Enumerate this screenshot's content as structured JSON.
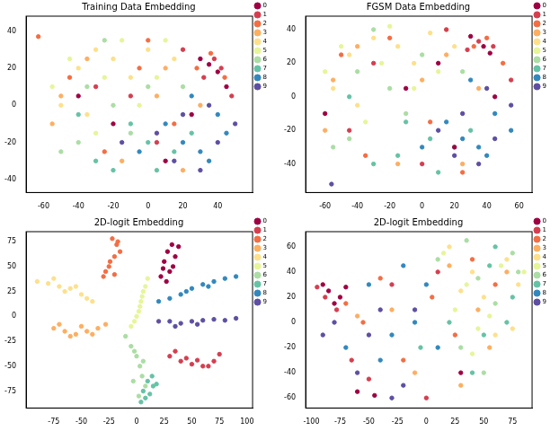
{
  "chart_data": [
    {
      "type": "scatter",
      "title": "Training Data Embedding",
      "xlim": [
        -70,
        60
      ],
      "ylim": [
        -47,
        48
      ],
      "xticks": [
        -60,
        -40,
        -20,
        0,
        20,
        40
      ],
      "yticks": [
        -40,
        -20,
        0,
        20,
        40
      ],
      "grid": false,
      "legend": "upper right",
      "marker": "circle",
      "series": [
        {
          "name": "0",
          "color": "#9e0142",
          "x": [
            35,
            40,
            30,
            45,
            -20,
            10,
            -40,
            25
          ],
          "y": [
            22,
            18,
            25,
            10,
            -10,
            -30,
            5,
            -5
          ]
        },
        {
          "name": "1",
          "color": "#d53e4f",
          "x": [
            38,
            42,
            32,
            -30,
            5,
            20,
            -10,
            48
          ],
          "y": [
            25,
            20,
            15,
            10,
            -20,
            30,
            5,
            5
          ]
        },
        {
          "name": "2",
          "color": "#f46d43",
          "x": [
            36,
            28,
            -45,
            -5,
            15,
            -25,
            44,
            0,
            -63
          ],
          "y": [
            28,
            20,
            15,
            20,
            -10,
            -25,
            15,
            35,
            37
          ]
        },
        {
          "name": "3",
          "color": "#fdae61",
          "x": [
            -50,
            -35,
            10,
            -15,
            30,
            20,
            -55,
            5
          ],
          "y": [
            5,
            25,
            20,
            -30,
            0,
            -35,
            -10,
            5
          ]
        },
        {
          "name": "4",
          "color": "#fee08b",
          "x": [
            -40,
            -30,
            -20,
            -50,
            -10,
            0,
            -35,
            15
          ],
          "y": [
            20,
            30,
            25,
            0,
            15,
            30,
            -5,
            25
          ]
        },
        {
          "name": "5",
          "color": "#e6f598",
          "x": [
            -45,
            -25,
            -55,
            -15,
            5,
            -30,
            10,
            -5
          ],
          "y": [
            25,
            15,
            10,
            35,
            15,
            -15,
            35,
            0
          ]
        },
        {
          "name": "6",
          "color": "#abdda4",
          "x": [
            -35,
            -20,
            -40,
            -10,
            0,
            -25,
            -50,
            20
          ],
          "y": [
            10,
            0,
            -20,
            -15,
            10,
            35,
            -25,
            10
          ]
        },
        {
          "name": "7",
          "color": "#66c2a5",
          "x": [
            0,
            -20,
            15,
            -10,
            25,
            -30,
            5,
            -40
          ],
          "y": [
            -20,
            -35,
            -25,
            -10,
            -15,
            -30,
            -35,
            -5
          ]
        },
        {
          "name": "8",
          "color": "#3288bd",
          "x": [
            20,
            35,
            40,
            10,
            30,
            -5,
            45,
            25
          ],
          "y": [
            -20,
            -30,
            -5,
            -10,
            -25,
            -25,
            -15,
            5
          ]
        },
        {
          "name": "9",
          "color": "#5e4fa2",
          "x": [
            30,
            15,
            40,
            50,
            20,
            5,
            35,
            -15
          ],
          "y": [
            -35,
            -30,
            -20,
            -10,
            -5,
            -15,
            0,
            -20
          ]
        }
      ]
    },
    {
      "type": "scatter",
      "title": "FGSM Data Embedding",
      "xlim": [
        -72,
        68
      ],
      "ylim": [
        -57,
        48
      ],
      "xticks": [
        -60,
        -40,
        -20,
        0,
        20,
        40,
        60
      ],
      "yticks": [
        -40,
        -20,
        0,
        20,
        40
      ],
      "grid": false,
      "legend": "upper right",
      "marker": "circle",
      "series": [
        {
          "name": "0",
          "color": "#9e0142",
          "x": [
            38,
            42,
            30,
            -60,
            20,
            -10,
            45,
            10
          ],
          "y": [
            30,
            26,
            36,
            -10,
            -30,
            5,
            0,
            20
          ]
        },
        {
          "name": "1",
          "color": "#d53e4f",
          "x": [
            35,
            44,
            28,
            -30,
            0,
            55,
            -45,
            15
          ],
          "y": [
            33,
            30,
            28,
            20,
            -40,
            10,
            -20,
            40
          ]
        },
        {
          "name": "2",
          "color": "#f46d43",
          "x": [
            40,
            32,
            -50,
            -20,
            5,
            -35,
            50,
            25
          ],
          "y": [
            35,
            30,
            25,
            35,
            -15,
            -35,
            20,
            -45
          ]
        },
        {
          "name": "3",
          "color": "#fdae61",
          "x": [
            -55,
            -40,
            15,
            -15,
            35,
            25,
            -60,
            0
          ],
          "y": [
            10,
            30,
            25,
            -40,
            5,
            -40,
            -20,
            10
          ]
        },
        {
          "name": "4",
          "color": "#fee08b",
          "x": [
            -45,
            -30,
            -15,
            -55,
            -5,
            5,
            -40,
            20
          ],
          "y": [
            25,
            35,
            30,
            5,
            20,
            38,
            -5,
            30
          ]
        },
        {
          "name": "5",
          "color": "#e6f598",
          "x": [
            -50,
            -25,
            -60,
            -20,
            10,
            -35,
            15,
            -5
          ],
          "y": [
            30,
            20,
            15,
            42,
            15,
            -15,
            40,
            5
          ]
        },
        {
          "name": "6",
          "color": "#abdda4",
          "x": [
            -40,
            -20,
            -45,
            -10,
            0,
            -30,
            -55,
            25
          ],
          "y": [
            15,
            5,
            -25,
            -10,
            25,
            40,
            -30,
            15
          ]
        },
        {
          "name": "7",
          "color": "#66c2a5",
          "x": [
            5,
            -15,
            20,
            -10,
            30,
            -30,
            10,
            -45
          ],
          "y": [
            -25,
            -35,
            -30,
            -15,
            -20,
            -40,
            -45,
            0
          ]
        },
        {
          "name": "8",
          "color": "#3288bd",
          "x": [
            25,
            40,
            45,
            15,
            35,
            0,
            55,
            30
          ],
          "y": [
            -25,
            -35,
            -10,
            -15,
            -30,
            -30,
            -20,
            10
          ]
        },
        {
          "name": "9",
          "color": "#5e4fa2",
          "x": [
            35,
            20,
            45,
            55,
            25,
            10,
            40,
            -56
          ],
          "y": [
            -40,
            -35,
            -25,
            -5,
            -10,
            -20,
            5,
            -52
          ]
        }
      ]
    },
    {
      "type": "scatter",
      "title": "2D-logit Embedding",
      "xlim": [
        -100,
        105
      ],
      "ylim": [
        -92,
        85
      ],
      "xticks": [
        -75,
        -50,
        -25,
        0,
        25,
        50,
        75,
        100
      ],
      "yticks": [
        -75,
        -50,
        -25,
        0,
        25,
        50,
        75
      ],
      "grid": false,
      "legend": "upper right",
      "marker": "circle",
      "series": [
        {
          "name": "0",
          "color": "#9e0142",
          "x": [
            22,
            25,
            28,
            32,
            30,
            35,
            27,
            38,
            33,
            24
          ],
          "y": [
            40,
            55,
            65,
            72,
            45,
            60,
            35,
            70,
            50,
            48
          ]
        },
        {
          "name": "1",
          "color": "#d53e4f",
          "x": [
            30,
            40,
            50,
            60,
            70,
            75,
            45,
            55,
            65,
            35
          ],
          "y": [
            -40,
            -45,
            -48,
            -50,
            -45,
            -38,
            -42,
            -44,
            -50,
            -35
          ]
        },
        {
          "name": "2",
          "color": "#f46d43",
          "x": [
            -30,
            -25,
            -20,
            -18,
            -22,
            -28,
            -15,
            -24,
            -20,
            -17
          ],
          "y": [
            40,
            50,
            60,
            72,
            78,
            45,
            65,
            55,
            42,
            75
          ]
        },
        {
          "name": "3",
          "color": "#fdae61",
          "x": [
            -75,
            -65,
            -55,
            -45,
            -35,
            -60,
            -50,
            -70,
            -40,
            -28
          ],
          "y": [
            -12,
            -15,
            -18,
            -15,
            -12,
            -20,
            -10,
            -8,
            -18,
            -8
          ]
        },
        {
          "name": "4",
          "color": "#fee08b",
          "x": [
            -90,
            -80,
            -70,
            -60,
            -50,
            -40,
            -75,
            -65,
            -55,
            -45
          ],
          "y": [
            35,
            33,
            30,
            28,
            22,
            15,
            38,
            25,
            30,
            18
          ]
        },
        {
          "name": "5",
          "color": "#e6f598",
          "x": [
            -5,
            0,
            3,
            5,
            8,
            2,
            6,
            -2,
            4,
            10
          ],
          "y": [
            -10,
            0,
            10,
            20,
            30,
            5,
            25,
            -5,
            15,
            38
          ]
        },
        {
          "name": "6",
          "color": "#abdda4",
          "x": [
            -10,
            -5,
            0,
            3,
            5,
            8,
            2,
            -3,
            6,
            -2
          ],
          "y": [
            -20,
            -30,
            -40,
            -50,
            -60,
            -70,
            -80,
            -65,
            -45,
            -35
          ]
        },
        {
          "name": "7",
          "color": "#66c2a5",
          "x": [
            12,
            8,
            15,
            4,
            10,
            14,
            6,
            18
          ],
          "y": [
            -78,
            -82,
            -70,
            -86,
            -65,
            -60,
            -75,
            -68
          ]
        },
        {
          "name": "8",
          "color": "#3288bd",
          "x": [
            20,
            30,
            40,
            50,
            60,
            70,
            80,
            90,
            45,
            65
          ],
          "y": [
            15,
            18,
            22,
            28,
            32,
            35,
            38,
            40,
            25,
            30
          ]
        },
        {
          "name": "9",
          "color": "#5e4fa2",
          "x": [
            20,
            30,
            40,
            50,
            60,
            70,
            80,
            90,
            35,
            55
          ],
          "y": [
            -5,
            -5,
            -7,
            -5,
            -4,
            -3,
            -4,
            -2,
            -10,
            -8
          ]
        }
      ]
    },
    {
      "type": "scatter",
      "title": "2D-logit Embedding",
      "xlim": [
        -105,
        92
      ],
      "ylim": [
        -68,
        72
      ],
      "xticks": [
        -100,
        -75,
        -50,
        -25,
        0,
        25,
        50,
        75
      ],
      "yticks": [
        -60,
        -40,
        -20,
        0,
        20,
        40,
        60
      ],
      "grid": false,
      "legend": "upper right",
      "marker": "circle",
      "series": [
        {
          "name": "0",
          "color": "#9e0142",
          "x": [
            -90,
            -85,
            -75,
            -60,
            -45,
            -80,
            30,
            -70
          ],
          "y": [
            30,
            25,
            20,
            -55,
            -58,
            15,
            -40,
            28
          ]
        },
        {
          "name": "1",
          "color": "#d53e4f",
          "x": [
            -95,
            -88,
            -50,
            -30,
            0,
            -65,
            10,
            -78
          ],
          "y": [
            28,
            20,
            -45,
            30,
            -60,
            -30,
            40,
            10
          ]
        },
        {
          "name": "2",
          "color": "#f46d43",
          "x": [
            -70,
            -40,
            25,
            60,
            -20,
            40,
            -55,
            5
          ],
          "y": [
            15,
            35,
            -10,
            30,
            -30,
            50,
            0,
            20
          ]
        },
        {
          "name": "3",
          "color": "#fdae61",
          "x": [
            -60,
            20,
            -10,
            45,
            70,
            -30,
            30,
            55
          ],
          "y": [
            5,
            45,
            -40,
            10,
            40,
            10,
            -50,
            -20
          ]
        },
        {
          "name": "4",
          "color": "#fee08b",
          "x": [
            20,
            40,
            70,
            80,
            50,
            60,
            30,
            75
          ],
          "y": [
            60,
            40,
            50,
            30,
            20,
            -10,
            25,
            -5
          ]
        },
        {
          "name": "5",
          "color": "#e6f598",
          "x": [
            15,
            35,
            65,
            85,
            45,
            55,
            25,
            40
          ],
          "y": [
            55,
            30,
            45,
            40,
            -5,
            5,
            10,
            -25
          ]
        },
        {
          "name": "6",
          "color": "#abdda4",
          "x": [
            10,
            45,
            75,
            60,
            30,
            50,
            80,
            35
          ],
          "y": [
            50,
            35,
            55,
            15,
            -20,
            -40,
            40,
            65
          ]
        },
        {
          "name": "7",
          "color": "#66c2a5",
          "x": [
            50,
            70,
            40,
            60,
            20,
            75,
            -5,
            55
          ],
          "y": [
            -10,
            0,
            -40,
            60,
            0,
            20,
            -20,
            45
          ]
        },
        {
          "name": "8",
          "color": "#3288bd",
          "x": [
            -50,
            -30,
            -10,
            10,
            -70,
            -40,
            0,
            -20
          ],
          "y": [
            30,
            -10,
            0,
            -20,
            -20,
            -30,
            30,
            45
          ]
        },
        {
          "name": "9",
          "color": "#5e4fa2",
          "x": [
            -80,
            -60,
            -40,
            -20,
            -50,
            -90,
            -30,
            -10
          ],
          "y": [
            0,
            -40,
            10,
            -50,
            -10,
            -10,
            -60,
            10
          ]
        }
      ]
    }
  ]
}
